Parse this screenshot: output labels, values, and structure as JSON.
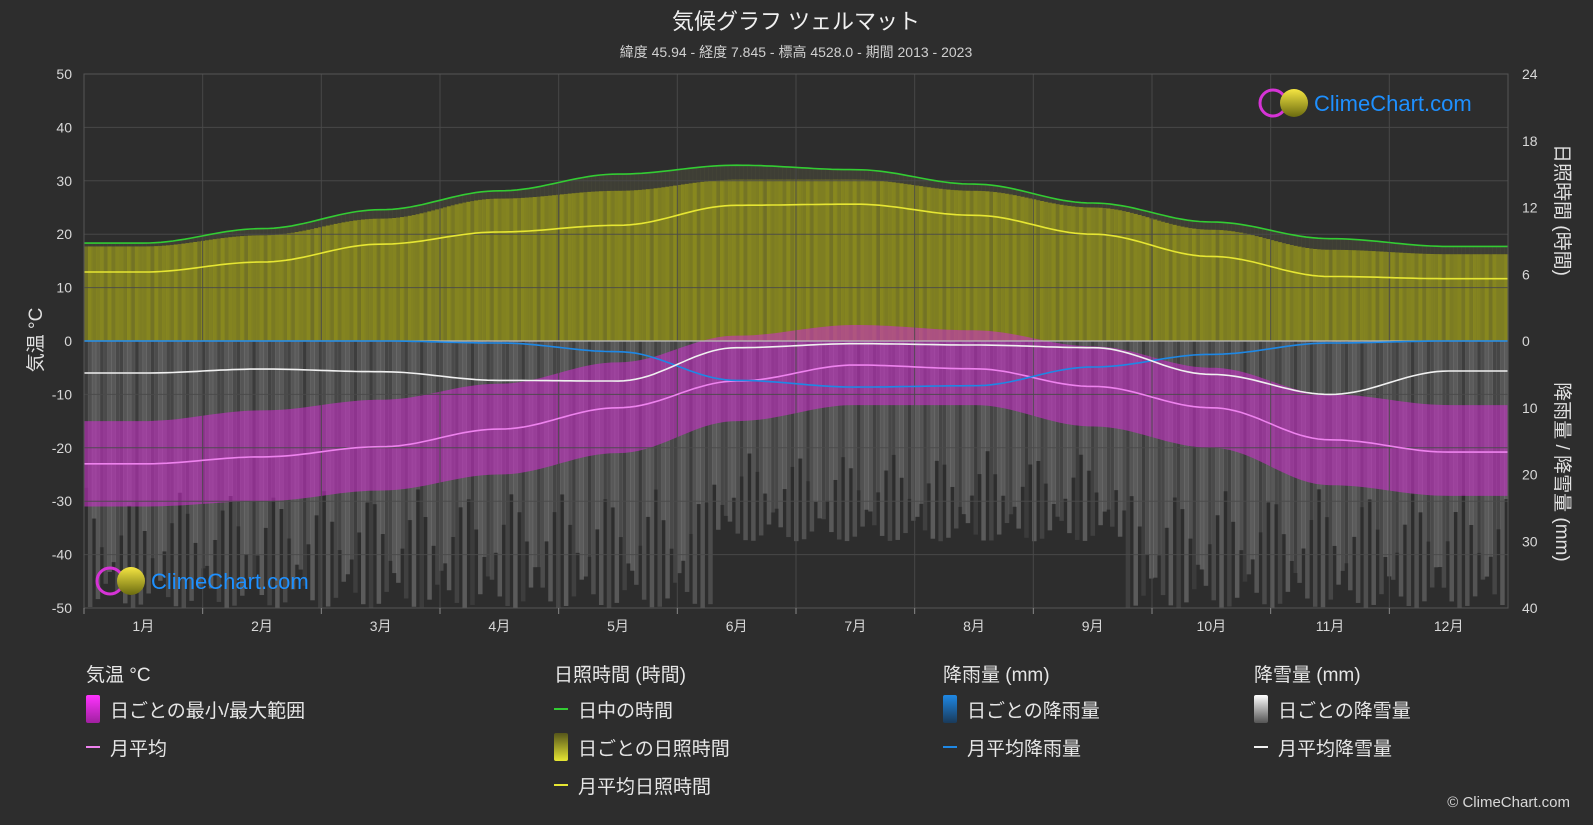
{
  "header": {
    "title": "気候グラフ  ツェルマット",
    "subtitle": "緯度 45.94 - 経度 7.845 - 標高 4528.0 - 期間 2013 - 2023"
  },
  "brand": {
    "logo_text": "ClimeChart.com",
    "copyright": "© ClimeChart.com"
  },
  "colors": {
    "background": "#2d2d2d",
    "grid": "#4a4a4a",
    "daylight": "#33cc33",
    "sunshine_fill": "#8c8c1e",
    "sunshine_line": "#e6e633",
    "temp_band": "#d02bd0",
    "temp_line": "#ee82ee",
    "rain_line": "#1e88e5",
    "snow_line": "#f0f0f0",
    "snow_fill": "#8a8a8a",
    "logo_blue": "#1e90ff"
  },
  "chart_data": {
    "type": "line",
    "categories": [
      "1月",
      "2月",
      "3月",
      "4月",
      "5月",
      "6月",
      "7月",
      "8月",
      "9月",
      "10月",
      "11月",
      "12月"
    ],
    "y_left": {
      "label": "気温 °C",
      "ylim": [
        -50,
        50
      ],
      "ticks": [
        "50",
        "40",
        "30",
        "20",
        "10",
        "0",
        "-10",
        "-20",
        "-30",
        "-40",
        "-50"
      ]
    },
    "y_right_top": {
      "label": "日照時間 (時間)",
      "ylim": [
        0,
        24
      ],
      "ticks": [
        "24",
        "18",
        "12",
        "6",
        "0"
      ]
    },
    "y_right_bottom": {
      "label": "降雨量 / 降雪量 (mm)",
      "ylim": [
        0,
        40
      ],
      "ticks": [
        "0",
        "10",
        "20",
        "30",
        "40"
      ]
    },
    "grid": true,
    "series": [
      {
        "name": "日中の時間",
        "axis": "sunshine",
        "values": [
          8.8,
          10.1,
          11.8,
          13.5,
          15.0,
          15.8,
          15.4,
          14.1,
          12.4,
          10.7,
          9.2,
          8.5
        ]
      },
      {
        "name": "月平均日照時間",
        "axis": "sunshine",
        "values": [
          6.2,
          7.1,
          8.7,
          9.8,
          10.4,
          12.2,
          12.3,
          11.3,
          9.6,
          7.6,
          5.8,
          5.6
        ]
      },
      {
        "name": "月平均",
        "axis": "temperature",
        "values": [
          -23.0,
          -21.7,
          -19.8,
          -16.5,
          -12.5,
          -7.5,
          -4.5,
          -5.2,
          -8.5,
          -12.5,
          -18.5,
          -20.8
        ]
      },
      {
        "name": "月平均降雨量",
        "axis": "precipitation",
        "values": [
          0.0,
          0.0,
          0.0,
          0.3,
          1.6,
          5.9,
          6.9,
          6.7,
          3.9,
          2.0,
          0.3,
          0.0
        ]
      },
      {
        "name": "月平均降雪量",
        "axis": "precipitation",
        "values": [
          4.8,
          4.2,
          4.6,
          5.9,
          6.0,
          1.0,
          0.4,
          0.6,
          1.0,
          5.0,
          8.0,
          4.5
        ]
      }
    ],
    "bands": [
      {
        "name": "日ごとの最小/最大範囲",
        "axis": "temperature",
        "min": [
          -31,
          -30,
          -28,
          -25,
          -21,
          -15,
          -12,
          -12,
          -16,
          -20,
          -27,
          -29
        ],
        "max": [
          -15,
          -13,
          -11,
          -8,
          -4,
          1,
          3,
          2,
          -1,
          -5,
          -10,
          -12
        ]
      }
    ],
    "daily_sunshine_max": [
      8.5,
      9.5,
      11.0,
      12.8,
      13.5,
      14.5,
      14.5,
      13.5,
      12.0,
      10.0,
      8.2,
      7.8
    ]
  },
  "legend": {
    "temperature": {
      "title": "気温 °C",
      "items": [
        "日ごとの最小/最大範囲",
        "月平均"
      ]
    },
    "sunshine": {
      "title": "日照時間 (時間)",
      "items": [
        "日中の時間",
        "日ごとの日照時間",
        "月平均日照時間"
      ]
    },
    "rain": {
      "title": "降雨量 (mm)",
      "items": [
        "日ごとの降雨量",
        "月平均降雨量"
      ]
    },
    "snow": {
      "title": "降雪量 (mm)",
      "items": [
        "日ごとの降雪量",
        "月平均降雪量"
      ]
    }
  }
}
